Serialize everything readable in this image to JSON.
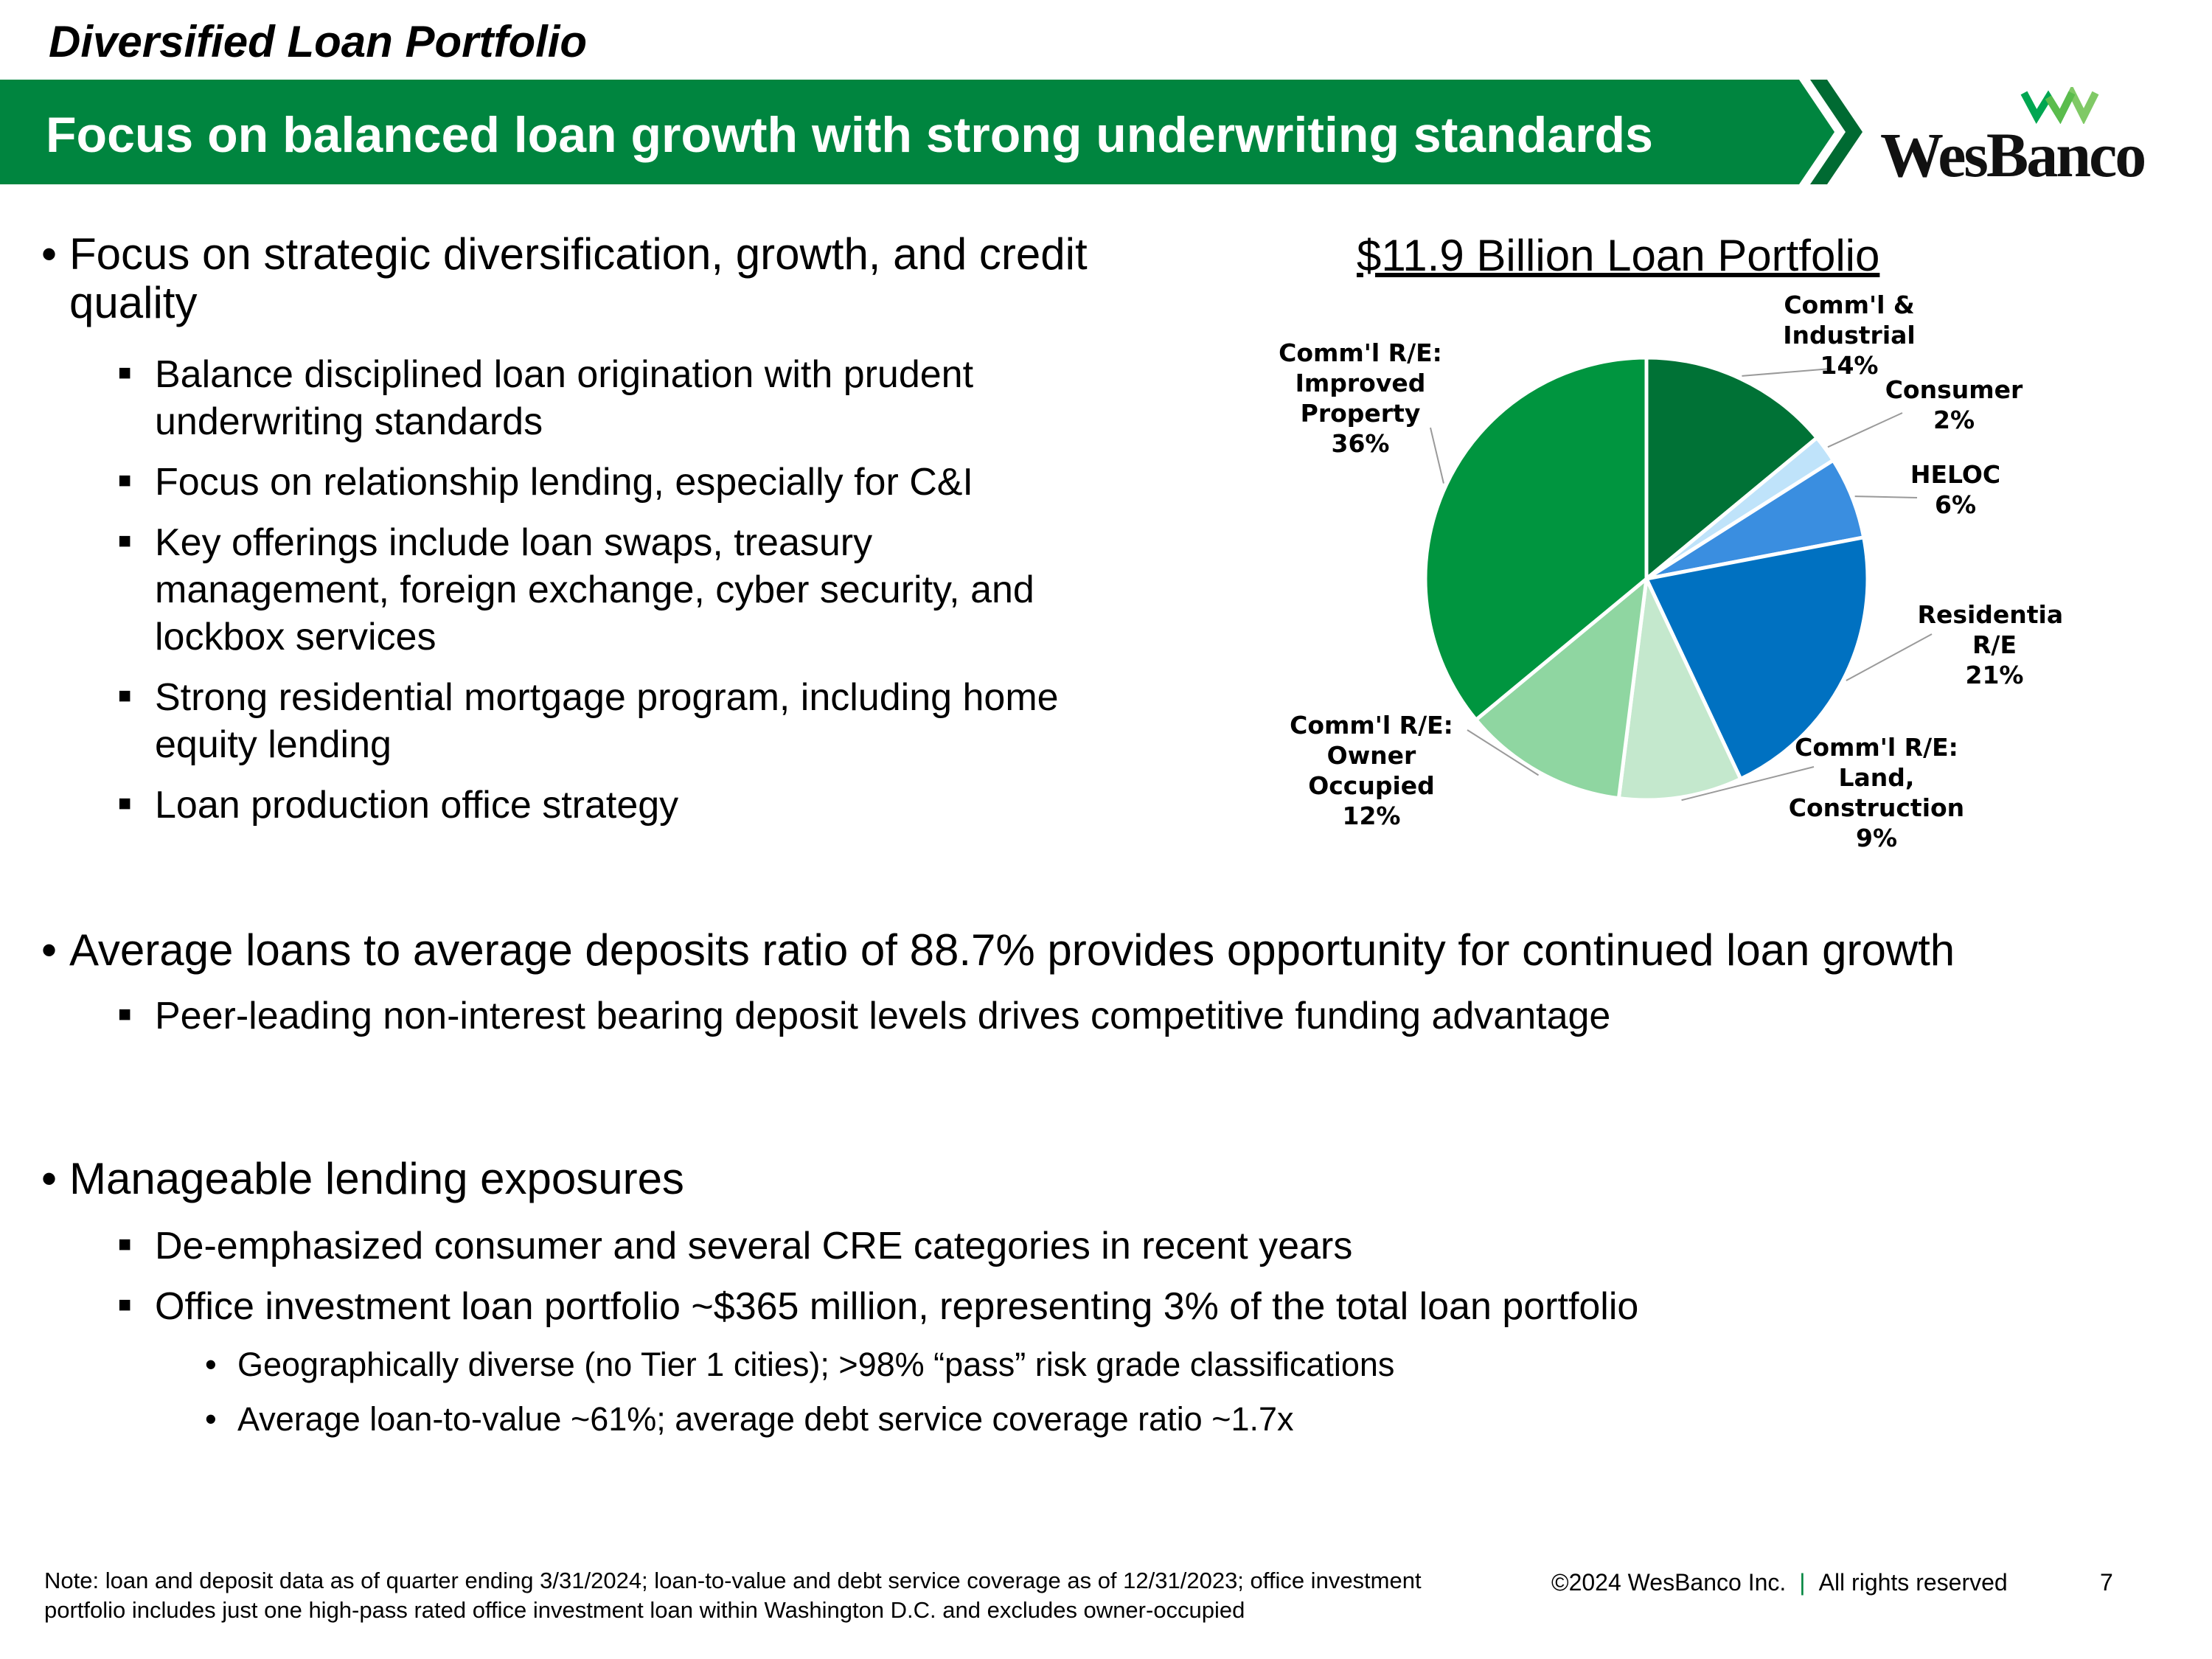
{
  "header": {
    "section_title": "Diversified Loan Portfolio",
    "banner_title": "Focus on balanced loan growth with strong underwriting standards",
    "logo_text": "WesBanco",
    "colors": {
      "banner": "#00853f",
      "banner_dark": "#006a32"
    }
  },
  "bullets": [
    {
      "text": "Focus on strategic diversification, growth, and credit quality",
      "sub": [
        "Balance disciplined loan origination with prudent underwriting standards",
        "Focus on relationship lending, especially for C&I",
        "Key offerings include loan swaps, treasury management, foreign exchange, cyber security, and lockbox services",
        "Strong residential mortgage program, including home equity lending",
        "Loan production office strategy"
      ]
    },
    {
      "text": "Average loans to average deposits ratio of 88.7% provides opportunity for continued loan growth",
      "sub": [
        "Peer-leading non-interest bearing deposit levels drives competitive funding advantage"
      ]
    },
    {
      "text": "Manageable lending exposures",
      "sub": [
        "De-emphasized consumer and several CRE categories in recent years",
        "Office investment loan portfolio ~$365 million, representing 3% of the total loan portfolio"
      ],
      "sub_sub": [
        "Geographically diverse (no Tier 1 cities); >98% “pass” risk grade classifications",
        "Average loan-to-value ~61%; average debt service coverage ratio ~1.7x"
      ]
    }
  ],
  "chart_data": {
    "type": "pie",
    "title": "$11.9 Billion Loan Portfolio",
    "slices": [
      {
        "label": [
          "Comm'l &",
          "Industrial",
          "14%"
        ],
        "value": 14,
        "color": "#007236"
      },
      {
        "label": [
          "Consumer",
          "2%"
        ],
        "value": 2,
        "color": "#bfe3fa"
      },
      {
        "label": [
          "HELOC",
          "6%"
        ],
        "value": 6,
        "color": "#3a8ee0"
      },
      {
        "label": [
          "Residential",
          "R/E",
          "21%"
        ],
        "value": 21,
        "color": "#0071c1"
      },
      {
        "label": [
          "Comm'l R/E:",
          "Land,",
          "Construction",
          "9%"
        ],
        "value": 9,
        "color": "#c4e8cd"
      },
      {
        "label": [
          "Comm'l R/E:",
          "Owner",
          "Occupied",
          "12%"
        ],
        "value": 12,
        "color": "#8fd6a1"
      },
      {
        "label": [
          "Comm'l R/E:",
          "Improved",
          "Property",
          "36%"
        ],
        "value": 36,
        "color": "#00953f"
      }
    ]
  },
  "footer": {
    "note": "Note: loan and deposit data as of quarter ending 3/31/2024; loan-to-value and debt service coverage as of 12/31/2023; office investment portfolio includes just one high-pass rated office investment loan within Washington D.C. and excludes owner-occupied",
    "copyright": "©2024 WesBanco Inc.",
    "rights": "All rights reserved",
    "page_number": "7"
  }
}
